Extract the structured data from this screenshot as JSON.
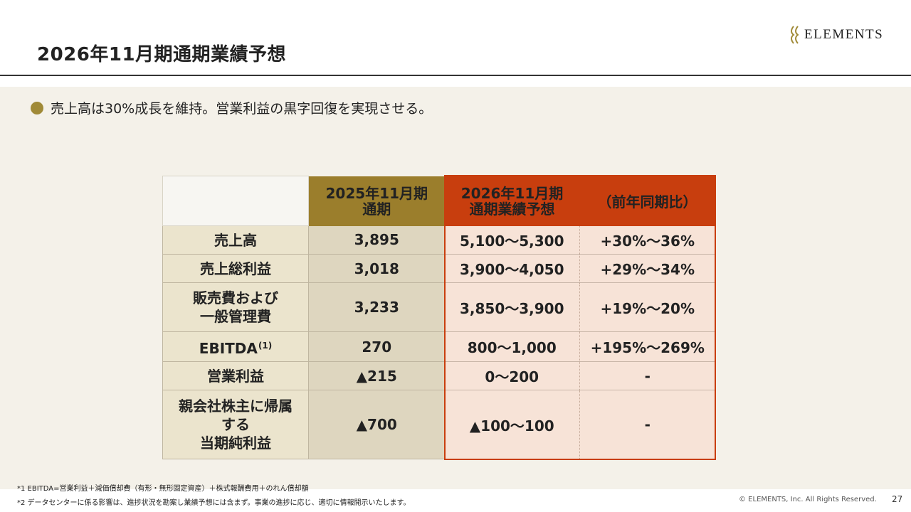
{
  "header": {
    "title": "2026年11月期通期業績予想",
    "logo_text": "ELEMENTS"
  },
  "bullet": {
    "text": "売上高は30%成長を維持。営業利益の黒字回復を実現させる。"
  },
  "table": {
    "headers": {
      "fy2025_line1": "2025年11月期",
      "fy2025_line2": "通期",
      "fy2026_line1": "2026年11月期",
      "fy2026_line2": "通期業績予想",
      "yoy": "（前年同期比）"
    },
    "rows": [
      {
        "label_line1": "売上高",
        "label_line2": "",
        "label_line3": "",
        "fy2025": "3,895",
        "fy2026": "5,100～5,300",
        "yoy": "+30%～36%"
      },
      {
        "label_line1": "売上総利益",
        "label_line2": "",
        "label_line3": "",
        "fy2025": "3,018",
        "fy2026": "3,900～4,050",
        "yoy": "+29%～34%"
      },
      {
        "label_line1": "販売費および",
        "label_line2": "一般管理費",
        "label_line3": "",
        "fy2025": "3,233",
        "fy2026": "3,850～3,900",
        "yoy": "+19%～20%"
      },
      {
        "label_line1": "EBITDA",
        "label_sup": "(1)",
        "label_line2": "",
        "label_line3": "",
        "fy2025": "270",
        "fy2026": "800～1,000",
        "yoy": "+195%～269%"
      },
      {
        "label_line1": "営業利益",
        "label_line2": "",
        "label_line3": "",
        "fy2025": "▲215",
        "fy2026": "0～200",
        "yoy": "-"
      },
      {
        "label_line1": "親会社株主に帰属",
        "label_line2": "する",
        "label_line3": "当期純利益",
        "fy2025": "▲700",
        "fy2026": "▲100～100",
        "yoy": "-"
      }
    ]
  },
  "footnotes": {
    "note1": "*1 EBITDA=営業利益＋減価償却費（有形・無形固定資産）＋株式報酬費用＋のれん償却額",
    "note2": "*2 データセンターに係る影響は、進捗状況を勘案し業績予想には含まず。事業の進捗に応じ、適切に情報開示いたします。"
  },
  "footer": {
    "copyright": "© ELEMENTS, Inc. All Rights Reserved.",
    "page_number": "27"
  },
  "colors": {
    "gold": "#9b7e2c",
    "red": "#c83e0e",
    "background": "#f4f1e9"
  }
}
